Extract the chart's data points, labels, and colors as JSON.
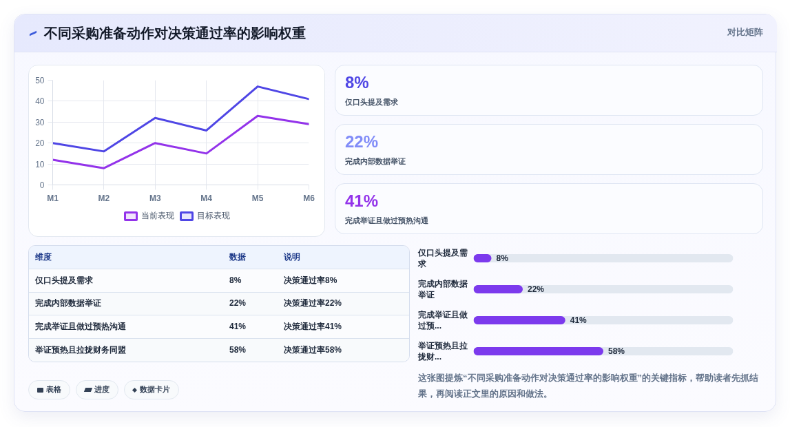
{
  "chart_data": [
    {
      "type": "line",
      "title": "不同采购准备动作对决策通过率的影响权重",
      "categories": [
        "M1",
        "M2",
        "M3",
        "M4",
        "M5",
        "M6"
      ],
      "series": [
        {
          "name": "当前表现",
          "color": "#9333ea",
          "values": [
            12,
            8,
            20,
            15,
            33,
            29
          ]
        },
        {
          "name": "目标表现",
          "color": "#4f46e5",
          "values": [
            20,
            16,
            32,
            26,
            47,
            41
          ]
        }
      ],
      "ylim": [
        0,
        50
      ],
      "yticks": [
        0,
        10,
        20,
        30,
        40,
        50
      ],
      "grid": true,
      "legend": "bottom"
    },
    {
      "type": "other",
      "title": "对比矩阵",
      "colors": [
        "#4f46e5",
        "#818cf8",
        "#9333ea"
      ],
      "annotations": [
        "8%",
        "仅口头提及需求",
        "22%",
        "完成内部数据举证",
        "41%",
        "完成举证且做过预热沟通"
      ]
    },
    {
      "type": "other",
      "annotations": [
        "维度",
        "数据",
        "说明",
        "仅口头提及需求",
        "8%",
        "决策通过率8%",
        "完成内部数据举证",
        "22%",
        "决策通过率22%",
        "完成举证且做过预热沟通",
        "41%",
        "决策通过率41%",
        "举证预热且拉拢财务同盟",
        "58%",
        "决策通过率58%"
      ]
    },
    {
      "type": "bar",
      "orientation": "horizontal",
      "categories": [
        "仅口头提及需求",
        "完成内部数据举证",
        "完成举证且做过预...",
        "举证预热且拉拢财..."
      ],
      "values": [
        8,
        22,
        41,
        58
      ],
      "value_labels": [
        "8%",
        "22%",
        "41%",
        "58%"
      ],
      "color": "#7c3aed",
      "tick_labels": "y",
      "annotations": [
        "这张图提炼“不同采购准备动作对决策通过率的影响权重”的关键指标，帮助读者先抓结果，再阅读正文里的原因和做法。"
      ]
    },
    {
      "type": "other",
      "annotations": [
        "表格",
        "进度",
        "数据卡片"
      ]
    }
  ]
}
